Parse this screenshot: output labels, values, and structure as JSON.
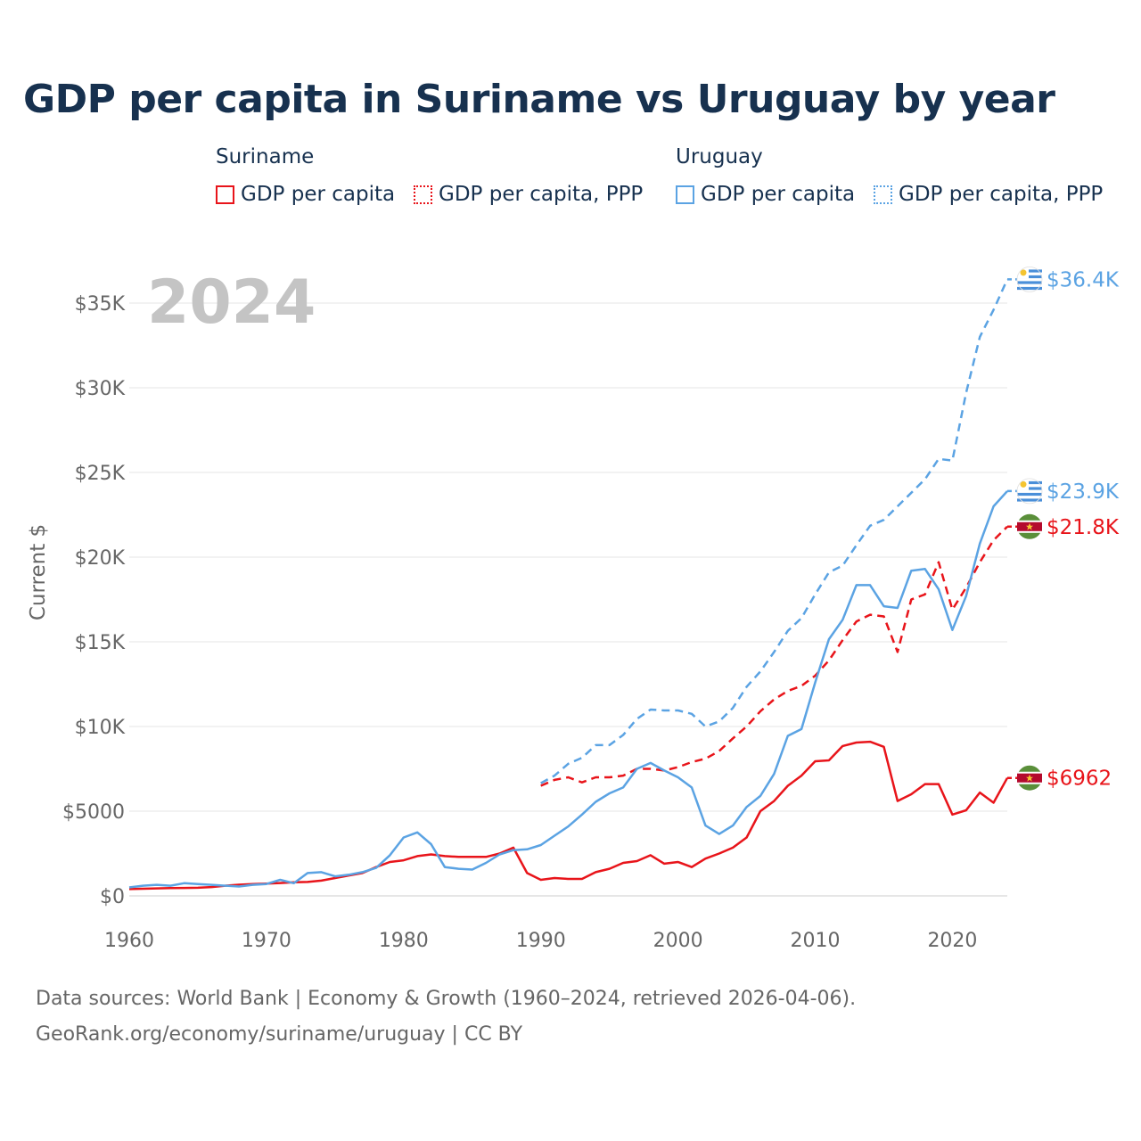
{
  "title": "GDP per capita in Suriname vs Uruguay by year",
  "legend": {
    "groups": [
      {
        "country": "Suriname",
        "items": [
          "GDP per capita",
          "GDP per capita, PPP"
        ]
      },
      {
        "country": "Uruguay",
        "items": [
          "GDP per capita",
          "GDP per capita, PPP"
        ]
      }
    ]
  },
  "colors": {
    "suriname": "#e8141a",
    "uruguay": "#5ba3e3",
    "grid": "#e6e6e6",
    "text": "#17314f",
    "muted": "#666666",
    "year": "#c4c4c4"
  },
  "source": {
    "line1": "Data sources: World Bank | Economy & Growth (1960–2024, retrieved 2026-04-06).",
    "line2": "GeoRank.org/economy/suriname/uruguay | CC BY"
  },
  "chart_data": {
    "type": "line",
    "title": "GDP per capita in Suriname vs Uruguay by year",
    "year_label": "2024",
    "ylabel": "Current $",
    "xlabel": "",
    "xlim": [
      1960,
      2024
    ],
    "ylim": [
      0,
      37000
    ],
    "xticks": [
      1960,
      1970,
      1980,
      1990,
      2000,
      2010,
      2020
    ],
    "yticks": [
      0,
      5000,
      10000,
      15000,
      20000,
      25000,
      30000,
      35000
    ],
    "ytick_labels": [
      "$0",
      "$5000",
      "$10K",
      "$15K",
      "$20K",
      "$25K",
      "$30K",
      "$35K"
    ],
    "grid": true,
    "series": [
      {
        "name": "Suriname GDP per capita",
        "country": "suriname",
        "dashed": false,
        "start": 1960,
        "end_label": "$6962",
        "values": [
          400,
          420,
          440,
          460,
          470,
          480,
          520,
          600,
          660,
          700,
          720,
          760,
          800,
          820,
          900,
          1050,
          1200,
          1350,
          1700,
          2000,
          2100,
          2350,
          2450,
          2350,
          2300,
          2300,
          2300,
          2500,
          2850,
          1350,
          950,
          1050,
          1000,
          1000,
          1400,
          1600,
          1950,
          2050,
          2400,
          1900,
          2000,
          1700,
          2200,
          2500,
          2850,
          3450,
          5000,
          5600,
          6500,
          7100,
          7950,
          8000,
          8850,
          9050,
          9100,
          8800,
          5600,
          6000,
          6600,
          6600,
          4800,
          5050,
          6100,
          5500,
          6962
        ]
      },
      {
        "name": "Suriname GDP per capita, PPP",
        "country": "suriname",
        "dashed": true,
        "start": 1990,
        "end_label": "$21.8K",
        "values": [
          6500,
          6850,
          7000,
          6700,
          7000,
          7000,
          7100,
          7500,
          7500,
          7400,
          7600,
          7900,
          8100,
          8550,
          9300,
          10000,
          10900,
          11600,
          12100,
          12400,
          13000,
          13900,
          15100,
          16200,
          16600,
          16500,
          14400,
          17500,
          17800,
          19700,
          16900,
          18200,
          19700,
          21000,
          21800
        ]
      },
      {
        "name": "Uruguay GDP per capita",
        "country": "uruguay",
        "dashed": false,
        "start": 1960,
        "end_label": "$23.9K",
        "values": [
          500,
          600,
          650,
          600,
          750,
          700,
          650,
          600,
          550,
          650,
          700,
          950,
          750,
          1350,
          1400,
          1150,
          1250,
          1400,
          1650,
          2400,
          3450,
          3750,
          3050,
          1700,
          1600,
          1550,
          1950,
          2450,
          2700,
          2750,
          3000,
          3550,
          4100,
          4800,
          5550,
          6050,
          6400,
          7500,
          7850,
          7400,
          7000,
          6400,
          4150,
          3650,
          4150,
          5250,
          5900,
          7200,
          9450,
          9850,
          12600,
          15150,
          16300,
          18350,
          18350,
          17100,
          17000,
          19200,
          19300,
          18100,
          15700,
          17700,
          20800,
          23000,
          23900
        ]
      },
      {
        "name": "Uruguay GDP per capita, PPP",
        "country": "uruguay",
        "dashed": true,
        "start": 1990,
        "end_label": "$36.4K",
        "values": [
          6650,
          7100,
          7800,
          8150,
          8900,
          8900,
          9500,
          10450,
          11000,
          10950,
          10950,
          10750,
          10000,
          10300,
          11100,
          12350,
          13250,
          14400,
          15650,
          16400,
          17800,
          19100,
          19500,
          20700,
          21850,
          22200,
          23000,
          23800,
          24600,
          25800,
          25700,
          29700,
          33000,
          34600,
          36400
        ]
      }
    ]
  }
}
